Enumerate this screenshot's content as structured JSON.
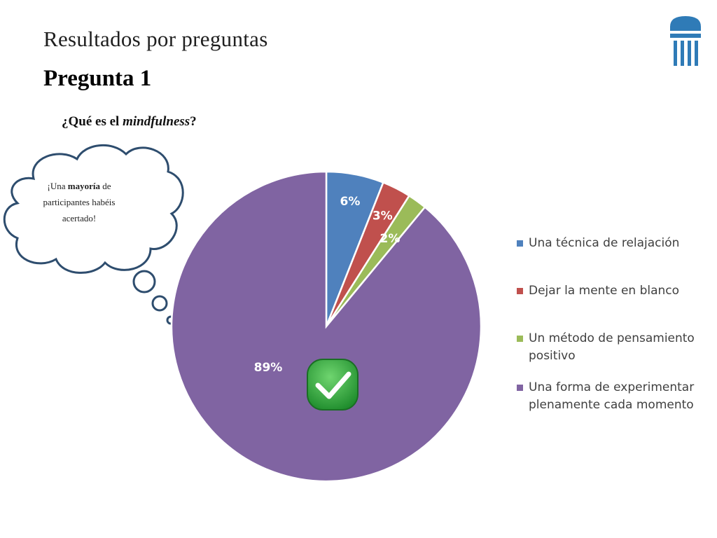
{
  "slide": {
    "heading": "Resultados por preguntas",
    "title": "Pregunta 1",
    "question_start": "¿Qué es el ",
    "question_italic": "mindfulness",
    "question_end": "?"
  },
  "callout": {
    "line_start": "¡Una ",
    "line_bold": "mayoría",
    "line_rest": " de participantes habéis acertado!"
  },
  "colors": {
    "blue": "#4f81bd",
    "red": "#c0504d",
    "green": "#9bbb59",
    "purple": "#8064a2",
    "cloud_stroke": "#2e4d6e",
    "check_green": "#2da53b"
  },
  "chart_data": {
    "type": "pie",
    "labels": [
      "Una técnica de relajación",
      "Dejar la mente en blanco",
      "Un método de pensamiento positivo",
      "Una forma de experimentar plenamente cada momento"
    ],
    "values": [
      6,
      3,
      2,
      89
    ],
    "value_labels": [
      "6%",
      "3%",
      "2%",
      "89%"
    ],
    "colors": [
      "#4f81bd",
      "#c0504d",
      "#9bbb59",
      "#8064a2"
    ],
    "correct_answer_index": 3,
    "legend_position": "right"
  },
  "icons": {
    "logo": "university-columns-logo",
    "correct": "checkmark-icon"
  }
}
